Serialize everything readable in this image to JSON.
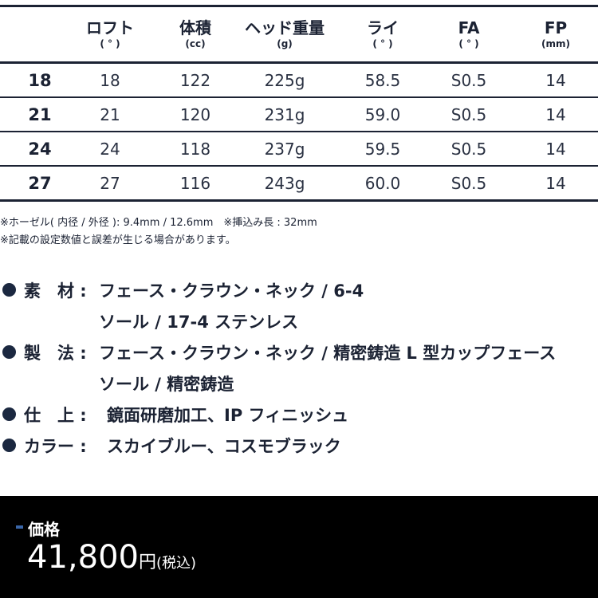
{
  "table": {
    "headers": [
      {
        "label": "ロフト",
        "unit": "( ° )"
      },
      {
        "label": "体積",
        "unit": "(cc)"
      },
      {
        "label": "ヘッド重量",
        "unit": "(g)"
      },
      {
        "label": "ライ",
        "unit": "( ° )"
      },
      {
        "label": "FA",
        "unit": "( ° )"
      },
      {
        "label": "FP",
        "unit": "(mm)"
      }
    ],
    "rows": [
      {
        "label": "18",
        "cells": [
          "18",
          "122",
          "225g",
          "58.5",
          "S0.5",
          "14"
        ]
      },
      {
        "label": "21",
        "cells": [
          "21",
          "120",
          "231g",
          "59.0",
          "S0.5",
          "14"
        ]
      },
      {
        "label": "24",
        "cells": [
          "24",
          "118",
          "237g",
          "59.5",
          "S0.5",
          "14"
        ]
      },
      {
        "label": "27",
        "cells": [
          "27",
          "116",
          "243g",
          "60.0",
          "S0.5",
          "14"
        ]
      }
    ]
  },
  "notes": [
    "※ホーゼル( 内径 / 外径 ): 9.4mm / 12.6mm　※挿込み長 : 32mm",
    "※記載の設定数値と誤差が生じる場合があります。"
  ],
  "specs": [
    {
      "label": "素　材 :",
      "lines": [
        "フェース・クラウン・ネック / 6-4",
        "ソール / 17-4 ステンレス"
      ]
    },
    {
      "label": "製　法 :",
      "lines": [
        "フェース・クラウン・ネック / 精密鋳造 L 型カップフェース",
        "ソール / 精密鋳造"
      ]
    },
    {
      "label": "仕　上 :",
      "lines": [
        "鏡面研磨加工、IP フィニッシュ"
      ]
    },
    {
      "label": "カラー :",
      "lines": [
        "スカイブルー、コスモブラック"
      ]
    }
  ],
  "price": {
    "heading": "価格",
    "amount": "41,800",
    "currency": "円",
    "tax": "(税込)",
    "accent": "#3a66a8"
  }
}
